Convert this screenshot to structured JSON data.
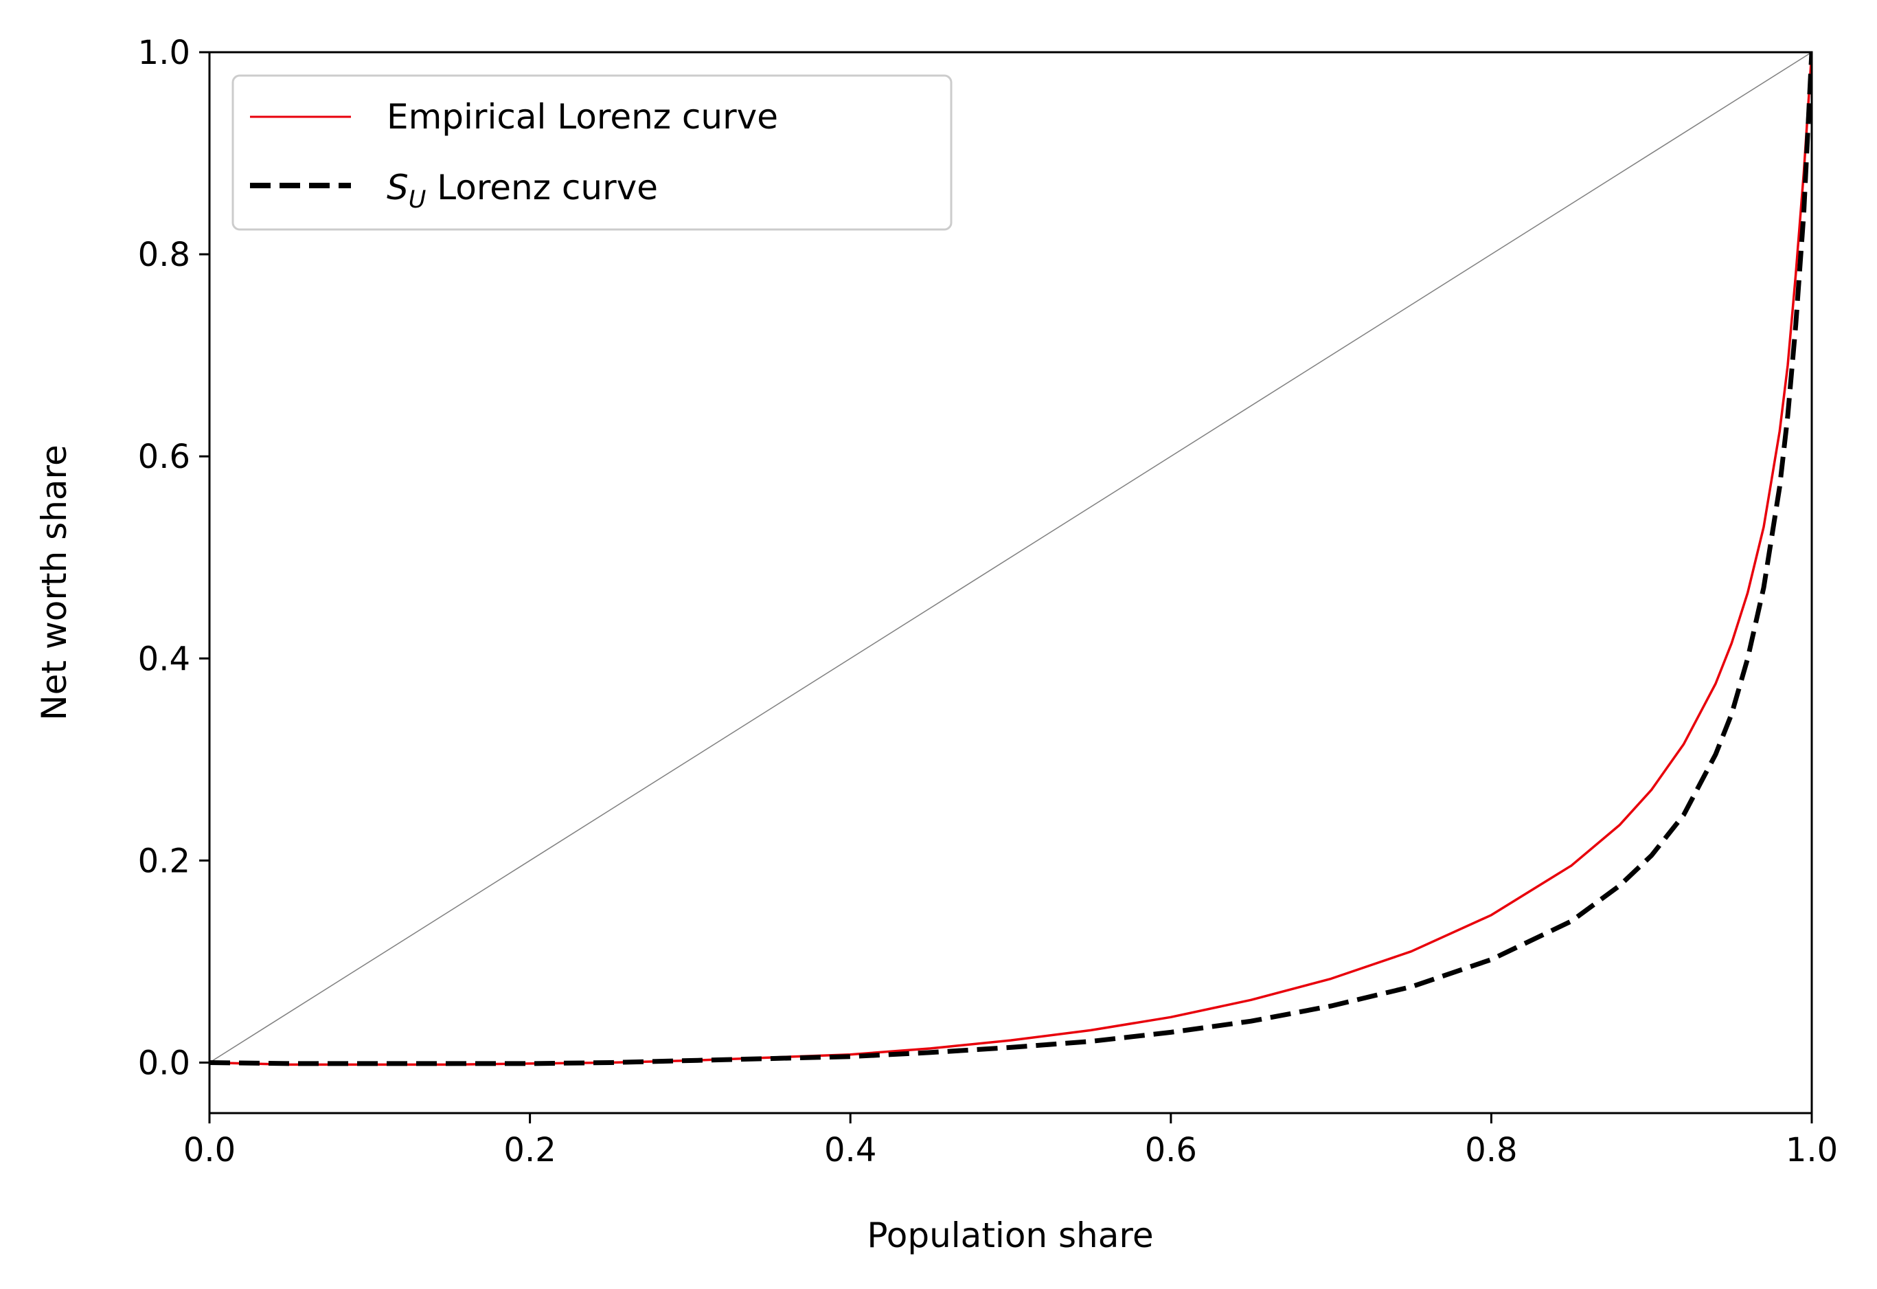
{
  "chart_data": {
    "type": "line",
    "title": "",
    "xlabel": "Population share",
    "ylabel": "Net worth share",
    "xlim": [
      0.0,
      1.0
    ],
    "ylim": [
      -0.05,
      1.0
    ],
    "xticks": [
      "0.0",
      "0.2",
      "0.4",
      "0.6",
      "0.8",
      "1.0"
    ],
    "yticks": [
      "0.0",
      "0.2",
      "0.4",
      "0.6",
      "0.8",
      "1.0"
    ],
    "grid": false,
    "legend_position": "upper-left",
    "legend": {
      "empirical": "Empirical Lorenz curve",
      "su_symbol": "S",
      "su_subscript": "U",
      "su_text": " Lorenz curve"
    },
    "reference_line": {
      "x": [
        0.0,
        1.0
      ],
      "y": [
        0.0,
        1.0
      ],
      "color": "#808080"
    },
    "series": [
      {
        "name": "Empirical Lorenz curve",
        "color": "#e8000b",
        "style": "solid",
        "x": [
          0.0,
          0.05,
          0.1,
          0.15,
          0.2,
          0.25,
          0.3,
          0.35,
          0.4,
          0.45,
          0.5,
          0.55,
          0.6,
          0.65,
          0.7,
          0.75,
          0.8,
          0.85,
          0.88,
          0.9,
          0.92,
          0.94,
          0.95,
          0.96,
          0.97,
          0.98,
          0.985,
          0.99,
          0.995,
          1.0
        ],
        "y": [
          0.0,
          -0.002,
          -0.002,
          -0.002,
          -0.001,
          0.0,
          0.002,
          0.005,
          0.008,
          0.014,
          0.022,
          0.032,
          0.045,
          0.062,
          0.083,
          0.11,
          0.146,
          0.195,
          0.235,
          0.27,
          0.315,
          0.375,
          0.415,
          0.465,
          0.53,
          0.625,
          0.69,
          0.78,
          0.88,
          1.0
        ]
      },
      {
        "name": "S_U Lorenz curve",
        "color": "#000000",
        "style": "dashed",
        "x": [
          0.0,
          0.05,
          0.1,
          0.15,
          0.2,
          0.25,
          0.3,
          0.35,
          0.4,
          0.45,
          0.5,
          0.55,
          0.6,
          0.65,
          0.7,
          0.75,
          0.8,
          0.85,
          0.88,
          0.9,
          0.92,
          0.94,
          0.95,
          0.96,
          0.97,
          0.98,
          0.985,
          0.99,
          0.995,
          1.0
        ],
        "y": [
          0.0,
          -0.001,
          -0.001,
          -0.001,
          -0.001,
          0.0,
          0.002,
          0.004,
          0.006,
          0.01,
          0.015,
          0.021,
          0.03,
          0.041,
          0.056,
          0.075,
          0.102,
          0.14,
          0.175,
          0.205,
          0.245,
          0.305,
          0.345,
          0.4,
          0.47,
          0.57,
          0.64,
          0.73,
          0.84,
          1.0
        ]
      }
    ]
  }
}
